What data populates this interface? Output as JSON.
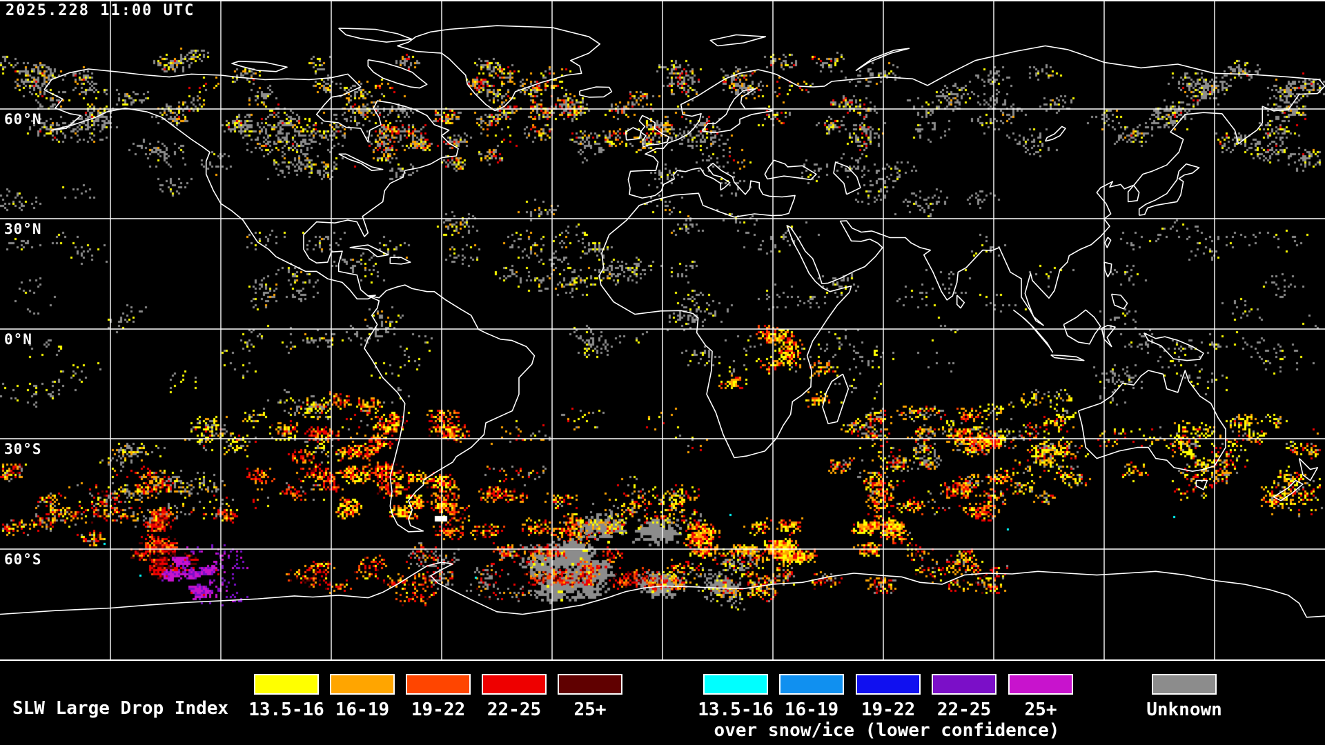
{
  "header": {
    "timestamp": "2025.228 11:00 UTC"
  },
  "map": {
    "latitude_labels": [
      {
        "label": "60°N"
      },
      {
        "label": "30°N"
      },
      {
        "label": "0°N"
      },
      {
        "label": "30°S"
      },
      {
        "label": "60°S"
      }
    ]
  },
  "legend": {
    "title": "SLW Large Drop Index",
    "primary_items": [
      {
        "label": "13.5-16",
        "color": "#ffff00"
      },
      {
        "label": "16-19",
        "color": "#ffa500"
      },
      {
        "label": "19-22",
        "color": "#ff4500"
      },
      {
        "label": "22-25",
        "color": "#ee0000"
      },
      {
        "label": "25+",
        "color": "#600000"
      }
    ],
    "snow_ice_items": [
      {
        "label": "13.5-16",
        "color": "#00ffff"
      },
      {
        "label": "16-19",
        "color": "#1090f0"
      },
      {
        "label": "19-22",
        "color": "#1010f0"
      },
      {
        "label": "22-25",
        "color": "#7b0fc8"
      },
      {
        "label": "25+",
        "color": "#c813cd"
      }
    ],
    "snow_ice_caption": "over snow/ice (lower confidence)",
    "unknown_item": {
      "label": "Unknown",
      "color": "#8c8c8c"
    }
  },
  "colors": {
    "background": "#000000",
    "map_lines": "#ffffff",
    "text": "#ffffff"
  }
}
